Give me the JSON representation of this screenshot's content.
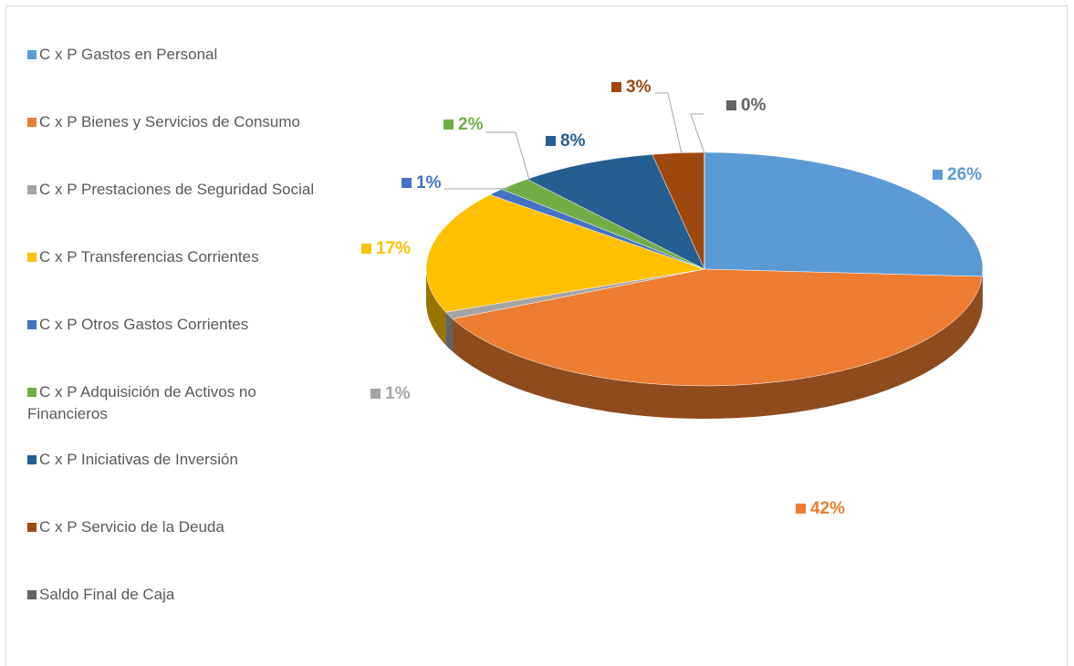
{
  "chart_data": {
    "type": "pie",
    "categories": [
      "C x P Gastos en Personal",
      "C x P Bienes y Servicios de Consumo",
      "C x P Prestaciones de Seguridad Social",
      "C x P Transferencias Corrientes",
      "C x P Otros Gastos Corrientes",
      "C x P Adquisición de Activos no Financieros",
      "C x P Iniciativas de Inversión",
      "C x P Servicio de la Deuda",
      "Saldo Final de Caja"
    ],
    "values": [
      26,
      42,
      1,
      17,
      1,
      2,
      8,
      3,
      0
    ],
    "value_labels": [
      "26%",
      "42%",
      "1%",
      "17%",
      "1%",
      "2%",
      "8%",
      "3%",
      "0%"
    ],
    "colors": [
      "#5b9bd5",
      "#ed7d31",
      "#a5a5a5",
      "#ffc000",
      "#4472c4",
      "#70ad47",
      "#255e91",
      "#9e480e",
      "#636363"
    ],
    "legend": "left"
  }
}
